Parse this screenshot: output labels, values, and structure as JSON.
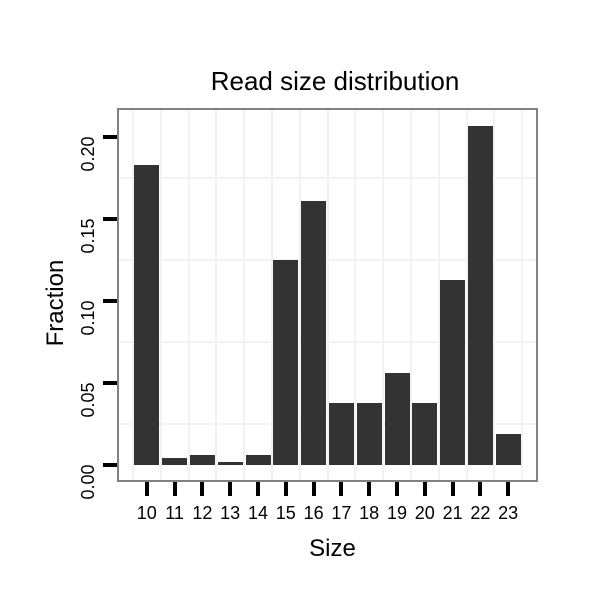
{
  "chart_data": {
    "type": "bar",
    "title": "Read size distribution",
    "xlabel": "Size",
    "ylabel": "Fraction",
    "categories": [
      "10",
      "11",
      "12",
      "13",
      "14",
      "15",
      "16",
      "17",
      "18",
      "19",
      "20",
      "21",
      "22",
      "23"
    ],
    "values": [
      0.183,
      0.004,
      0.006,
      0.002,
      0.006,
      0.125,
      0.161,
      0.038,
      0.038,
      0.056,
      0.038,
      0.113,
      0.207,
      0.019
    ],
    "y_ticks": [
      0.0,
      0.05,
      0.1,
      0.15,
      0.2
    ],
    "y_tick_labels": [
      "0.00",
      "0.05",
      "0.10",
      "0.15",
      "0.20"
    ],
    "ylim": [
      -0.009,
      0.217
    ],
    "grid": {
      "horizontal_minor_at": [
        0.025,
        0.075,
        0.125,
        0.175
      ],
      "vertical_at_category_boundaries": true
    },
    "legend_position": "none"
  },
  "colors": {
    "bar": "#333333",
    "panel_border": "#818181",
    "gridline": "#f2f2f2",
    "tick": "#000000",
    "text": "#000000",
    "background": "#ffffff"
  }
}
